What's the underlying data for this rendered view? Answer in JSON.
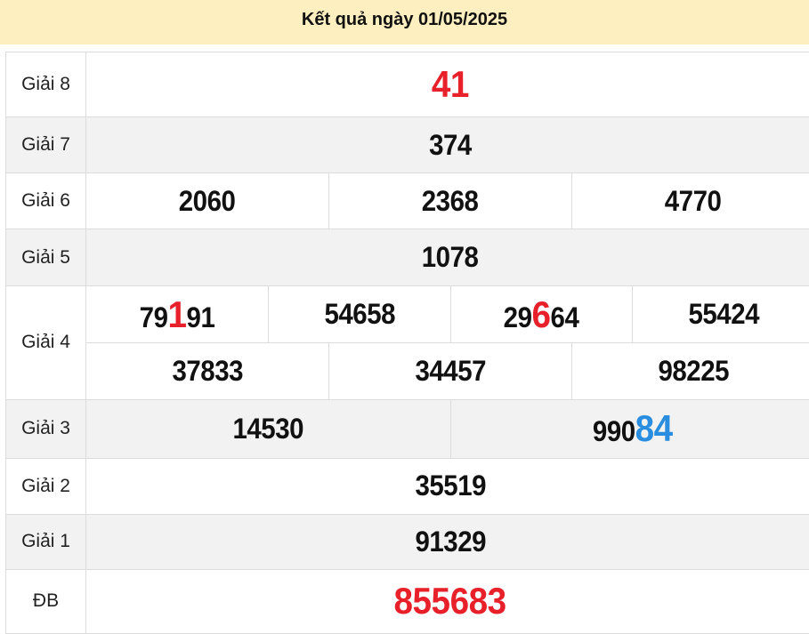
{
  "header": {
    "title": "Kết quả ngày 01/05/2025"
  },
  "colors": {
    "header_bg": "#fdefbf",
    "red": "#e8202a",
    "blue": "#2a8ee0",
    "alt_row": "#f2f2f2"
  },
  "prizes": {
    "g8": {
      "label": "Giải 8",
      "value": "41"
    },
    "g7": {
      "label": "Giải 7",
      "value": "374"
    },
    "g6": {
      "label": "Giải 6",
      "values": [
        "2060",
        "2368",
        "4770"
      ]
    },
    "g5": {
      "label": "Giải 5",
      "value": "1078"
    },
    "g4": {
      "label": "Giải 4",
      "row1": [
        {
          "pre": "79",
          "hi": "1",
          "post": "91"
        },
        {
          "pre": "54658",
          "hi": "",
          "post": ""
        },
        {
          "pre": "29",
          "hi": "6",
          "post": "64"
        },
        {
          "pre": "55424",
          "hi": "",
          "post": ""
        }
      ],
      "row2": [
        "37833",
        "34457",
        "98225"
      ]
    },
    "g3": {
      "label": "Giải 3",
      "values": [
        {
          "pre": "14530",
          "hi": ""
        },
        {
          "pre": "990",
          "hi": "84"
        }
      ]
    },
    "g2": {
      "label": "Giải 2",
      "value": "35519"
    },
    "g1": {
      "label": "Giải 1",
      "value": "91329"
    },
    "db": {
      "label": "ĐB",
      "value": "855683"
    }
  }
}
